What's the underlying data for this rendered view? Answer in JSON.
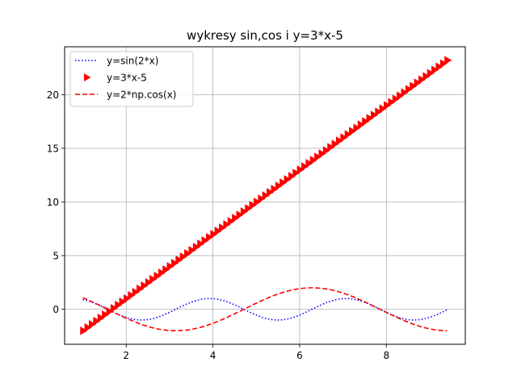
{
  "chart_data": {
    "type": "line",
    "title": "wykresy sin,cos i y=3*x-5",
    "xlabel": "",
    "ylabel": "",
    "xlim": [
      0.58,
      9.82
    ],
    "ylim": [
      -3.26,
      24.46
    ],
    "grid": true,
    "legend": {
      "placement": "top-left"
    },
    "xticks": [
      2,
      4,
      6,
      8
    ],
    "yticks": [
      0,
      5,
      10,
      15,
      20
    ],
    "series": [
      {
        "name": "y=sin(2*x)",
        "function": "sin(2*x)",
        "style": "dotted",
        "marker": "none",
        "color": "#0000ff",
        "x_range": [
          1.0,
          9.4
        ],
        "samples": 200
      },
      {
        "name": "y=3*x-5",
        "function": "3*x-5",
        "style": "none",
        "marker": "triangle-right",
        "color": "#ff0000",
        "x_range": [
          1.0,
          9.4
        ],
        "samples": 85
      },
      {
        "name": "y=2*np.cos(x)",
        "function": "2*cos(x)",
        "style": "dashed",
        "marker": "none",
        "color": "#ff0000",
        "x_range": [
          1.0,
          9.4
        ],
        "samples": 200
      }
    ]
  }
}
